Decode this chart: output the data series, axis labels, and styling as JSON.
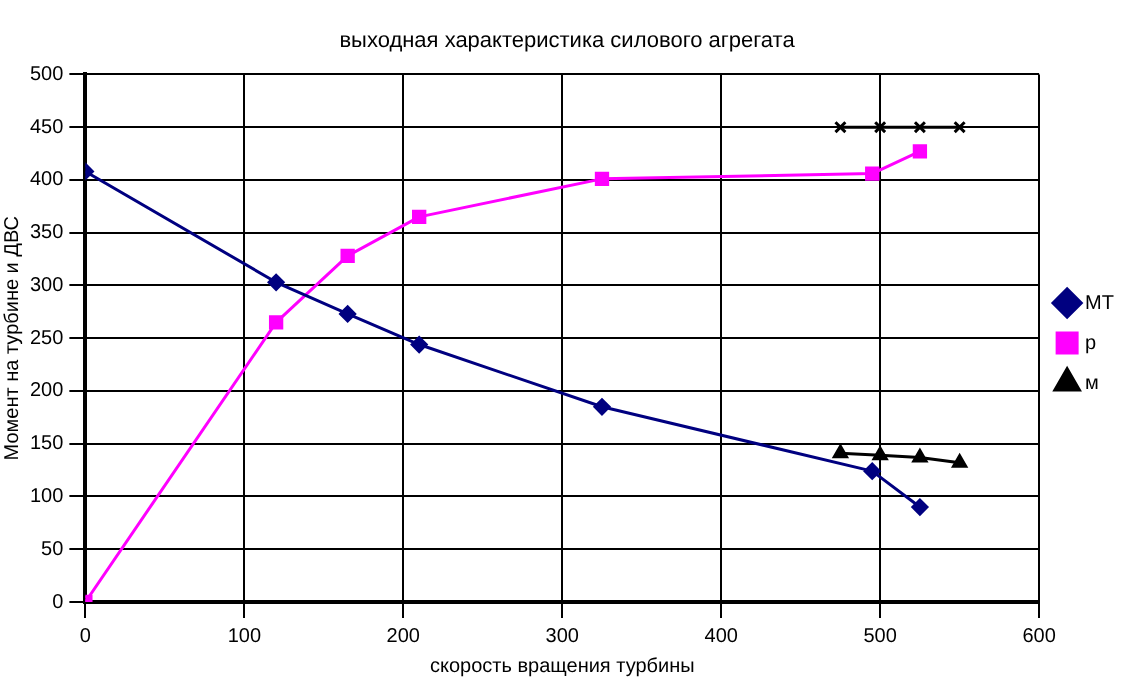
{
  "chart_data": {
    "type": "line",
    "title": "выходная характеристика силового агрегата",
    "xlabel": "скорость вращения турбины",
    "ylabel": "Момент на турбине и ДВС",
    "xlim": [
      0,
      600
    ],
    "xticks": [
      0,
      100,
      200,
      300,
      400,
      500,
      600
    ],
    "ylim": [
      0,
      500
    ],
    "yticks": [
      0,
      50,
      100,
      150,
      200,
      250,
      300,
      350,
      400,
      450,
      500
    ],
    "grid": true,
    "legend": "right",
    "series": [
      {
        "name": "МТ",
        "color": "#000080",
        "marker": "diamond",
        "x": [
          0,
          120,
          165,
          210,
          325,
          495,
          525
        ],
        "values": [
          408,
          303,
          273,
          244,
          185,
          124,
          90
        ]
      },
      {
        "name": "р",
        "color": "#ff00ff",
        "marker": "square",
        "x": [
          0,
          120,
          165,
          210,
          325,
          495,
          525
        ],
        "values": [
          0,
          265,
          328,
          365,
          401,
          406,
          427
        ]
      },
      {
        "name": "м",
        "color": "#000000",
        "marker": "triangle",
        "x": [
          475,
          500,
          525,
          550
        ],
        "values": [
          141,
          139,
          137,
          132
        ]
      },
      {
        "color": "#000000",
        "marker": "cross",
        "x": [
          475,
          500,
          525,
          550
        ],
        "values": [
          450,
          450,
          450,
          450
        ]
      }
    ]
  }
}
